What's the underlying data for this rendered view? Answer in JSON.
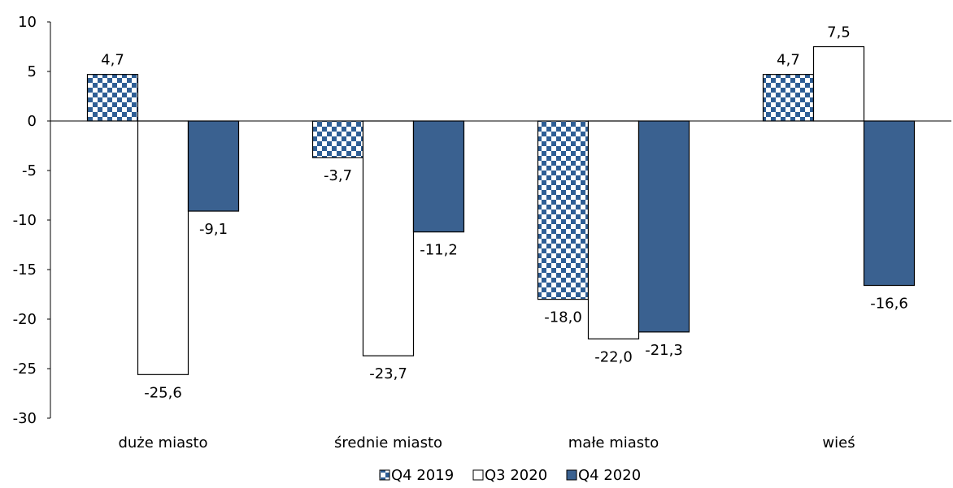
{
  "chart_data": {
    "type": "bar",
    "categories": [
      "duże miasto",
      "średnie miasto",
      "małe miasto",
      "wieś"
    ],
    "series": [
      {
        "name": "Q4 2019",
        "values": [
          4.7,
          -3.7,
          -18.0,
          4.7
        ],
        "labels": [
          "4,7",
          "-3,7",
          "-18,0",
          "4,7"
        ],
        "pattern": "checker",
        "color": "#2E5E95"
      },
      {
        "name": "Q3 2020",
        "values": [
          -25.6,
          -23.7,
          -22.0,
          7.5
        ],
        "labels": [
          "-25,6",
          "-23,7",
          "-22,0",
          "7,5"
        ],
        "pattern": "hollow",
        "color": "#FFFFFF"
      },
      {
        "name": "Q4 2020",
        "values": [
          -9.1,
          -11.2,
          -21.3,
          -16.6
        ],
        "labels": [
          "-9,1",
          "-11,2",
          "-21,3",
          "-16,6"
        ],
        "pattern": "solid",
        "color": "#3A6190"
      }
    ],
    "ylim": [
      -30,
      10
    ],
    "yticks": [
      10,
      5,
      0,
      -5,
      -10,
      -15,
      -20,
      -25,
      -30
    ],
    "title": "",
    "xlabel": "",
    "ylabel": "",
    "grid": false,
    "legend_position": "bottom-center"
  }
}
